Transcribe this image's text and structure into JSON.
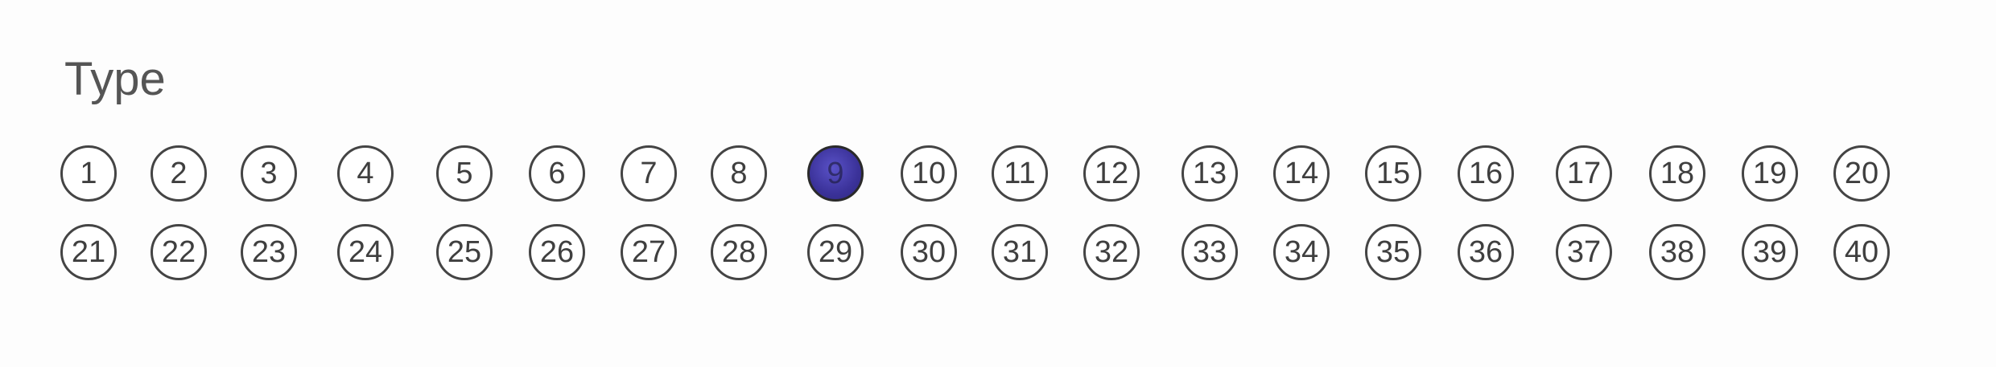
{
  "section": {
    "title": "Type"
  },
  "bubbles": {
    "selected": "9",
    "rows": [
      [
        "1",
        "2",
        "3",
        "4",
        "5",
        "6",
        "7",
        "8",
        "9",
        "10",
        "11",
        "12",
        "13",
        "14",
        "15",
        "16",
        "17",
        "18",
        "19",
        "20"
      ],
      [
        "21",
        "22",
        "23",
        "24",
        "25",
        "26",
        "27",
        "28",
        "29",
        "30",
        "31",
        "32",
        "33",
        "34",
        "35",
        "36",
        "37",
        "38",
        "39",
        "40"
      ]
    ]
  },
  "colors": {
    "filled_mark": "#3b3299",
    "outline": "#444444"
  }
}
